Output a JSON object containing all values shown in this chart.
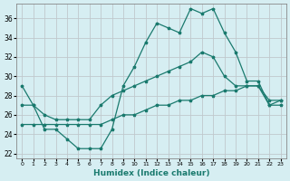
{
  "xlabel": "Humidex (Indice chaleur)",
  "bg_color": "#d6eef2",
  "line_color": "#1a7a6e",
  "grid_color": "#c0c8cc",
  "xlim": [
    -0.5,
    23.5
  ],
  "ylim": [
    21.5,
    37.5
  ],
  "yticks": [
    22,
    24,
    26,
    28,
    30,
    32,
    34,
    36
  ],
  "xticks": [
    0,
    1,
    2,
    3,
    4,
    5,
    6,
    7,
    8,
    9,
    10,
    11,
    12,
    13,
    14,
    15,
    16,
    17,
    18,
    19,
    20,
    21,
    22,
    23
  ],
  "line1_x": [
    0,
    1,
    2,
    3,
    4,
    5,
    6,
    7,
    8,
    9,
    10,
    11,
    12,
    13,
    14,
    15,
    16,
    17,
    18,
    19,
    20,
    21,
    22,
    23
  ],
  "line1_y": [
    29,
    27,
    24.5,
    24.5,
    23.5,
    22.5,
    22.5,
    22.5,
    24.5,
    29,
    31,
    33.5,
    35.5,
    35,
    34.5,
    37,
    36.5,
    37,
    34.5,
    32.5,
    29.5,
    29.5,
    27,
    27
  ],
  "line2_x": [
    0,
    1,
    2,
    3,
    4,
    5,
    6,
    7,
    8,
    9,
    10,
    11,
    12,
    13,
    14,
    15,
    16,
    17,
    18,
    19,
    20,
    21,
    22,
    23
  ],
  "line2_y": [
    27,
    27,
    26,
    25.5,
    25.5,
    25.5,
    25.5,
    27,
    28,
    28.5,
    29,
    29.5,
    30,
    30.5,
    31,
    31.5,
    32.5,
    32,
    30,
    29,
    29,
    29,
    27.5,
    27.5
  ],
  "line3_x": [
    0,
    1,
    2,
    3,
    4,
    5,
    6,
    7,
    8,
    9,
    10,
    11,
    12,
    13,
    14,
    15,
    16,
    17,
    18,
    19,
    20,
    21,
    22,
    23
  ],
  "line3_y": [
    25,
    25,
    25,
    25,
    25,
    25,
    25,
    25,
    25.5,
    26,
    26,
    26.5,
    27,
    27,
    27.5,
    27.5,
    28,
    28,
    28.5,
    28.5,
    29,
    29,
    27,
    27.5
  ]
}
